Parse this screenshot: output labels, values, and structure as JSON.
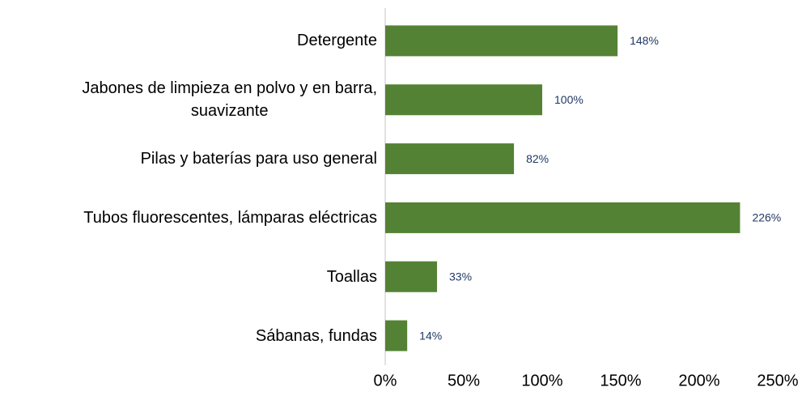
{
  "chart_data": {
    "type": "bar",
    "orientation": "horizontal",
    "categories": [
      "Detergente",
      "Jabones de limpieza en polvo y en barra,\nsuavizante",
      "Pilas y baterías para uso general",
      "Tubos fluorescentes, lámparas eléctricas",
      "Toallas",
      "Sábanas, fundas"
    ],
    "values": [
      148,
      100,
      82,
      226,
      33,
      14
    ],
    "value_labels": [
      "148%",
      "100%",
      "82%",
      "226%",
      "33%",
      "14%"
    ],
    "color": "#548235",
    "xlim": [
      0,
      250
    ],
    "xticks": [
      {
        "value": 0,
        "label": "0%"
      },
      {
        "value": 50,
        "label": "50%"
      },
      {
        "value": 100,
        "label": "100%"
      },
      {
        "value": 150,
        "label": "150%"
      },
      {
        "value": 200,
        "label": "200%"
      },
      {
        "value": 250,
        "label": "250%"
      }
    ],
    "grid": false
  }
}
